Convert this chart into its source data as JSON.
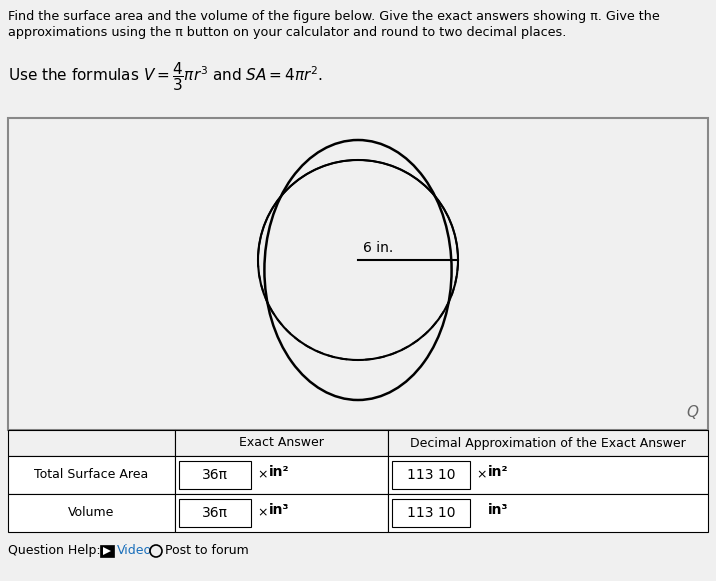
{
  "title_line1": "Find the surface area and the volume of the figure below. Give the exact answers showing π. Give the",
  "title_line2": "approximations using the π button on your calculator and round to two decimal places.",
  "bg_color": "#f0f0f0",
  "box_bg": "#f0f0f0",
  "radius_label": "6 in.",
  "table_header1": "Exact Answer",
  "table_header2": "Decimal Approximation of the Exact Answer",
  "row1_label": "Total Surface Area",
  "row1_exact": "36π",
  "row1_exact_unit": "in²",
  "row1_decimal": "113 10",
  "row1_decimal_unit": "in²",
  "row2_label": "Volume",
  "row2_exact": "36π",
  "row2_exact_unit": "in³",
  "row2_decimal": "113 10",
  "row2_decimal_unit": "in³",
  "question_help": "Question Help:",
  "video_text": "Video",
  "post_text": "Post to forum",
  "x_symbol": "×"
}
